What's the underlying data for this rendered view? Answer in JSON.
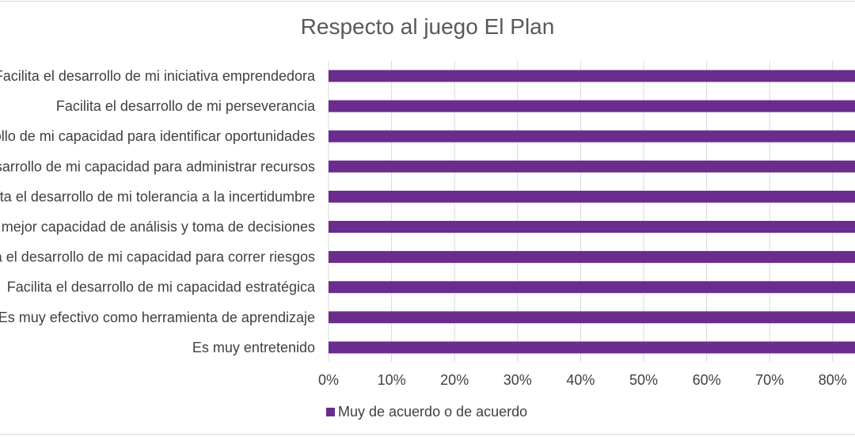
{
  "chart_data": {
    "type": "bar",
    "orientation": "horizontal",
    "title": "Respecto al juego El Plan",
    "categories": [
      "Facilita el desarrollo de mi iniciativa emprendedora",
      "Facilita el desarrollo de mi perseverancia",
      "Facilita el desarrollo de mi capacidad para identificar oportunidades",
      "Facilita el desarrollo de mi capacidad para administrar recursos",
      "Facilita el desarrollo de mi tolerancia a la incertidumbre",
      "Permite una mejor capacidad de análisis y toma de decisiones",
      "Facilita el desarrollo de mi capacidad para correr riesgos",
      "Facilita el desarrollo de mi capacidad estratégica",
      "Es muy efectivo como herramienta de aprendizaje",
      "Es muy entretenido"
    ],
    "series": [
      {
        "name": "Muy de acuerdo o de acuerdo",
        "values": [
          100,
          100,
          100,
          100,
          100,
          100,
          100,
          100,
          100,
          100
        ]
      }
    ],
    "xlabel": "",
    "ylabel": "",
    "xlim": [
      0,
      100
    ],
    "xticks": [
      "0%",
      "10%",
      "20%",
      "30%",
      "40%",
      "50%",
      "60%",
      "70%",
      "80%"
    ],
    "grid": true,
    "legend_position": "bottom",
    "colors": {
      "bar": "#6a2c8f",
      "grid": "#d9d9d9",
      "text": "#404040",
      "title": "#595959"
    }
  }
}
